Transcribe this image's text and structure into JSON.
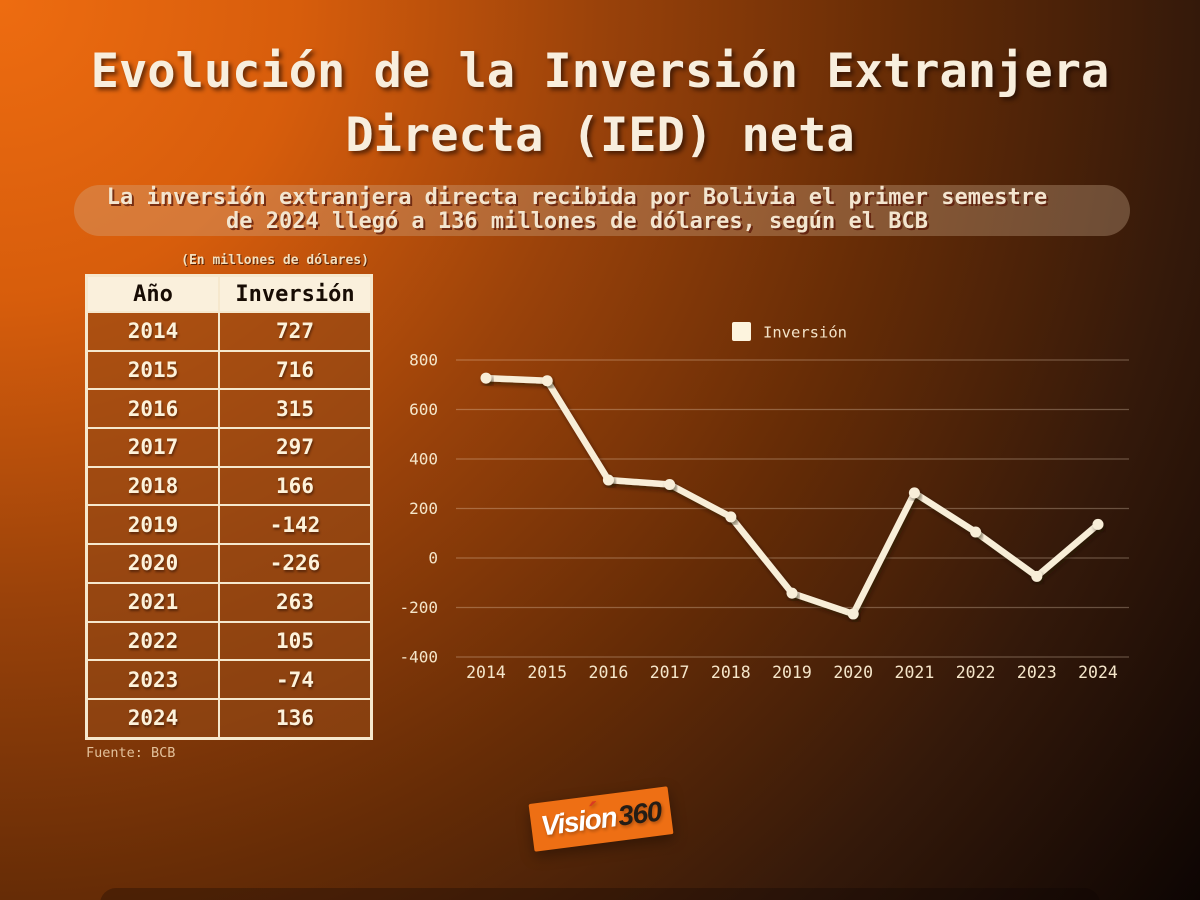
{
  "title": {
    "line1": "Evolución de la Inversión Extranjera",
    "line2": "Directa (IED) neta"
  },
  "subtitle": {
    "line1": "La inversión extranjera directa recibida por Bolivia el primer semestre",
    "line2": "de 2024 llegó a 136 millones de dólares, según el BCB"
  },
  "table": {
    "note": "(En millones de dólares)",
    "headers": [
      "Año",
      "Inversión"
    ],
    "rows": [
      [
        "2014",
        "727"
      ],
      [
        "2015",
        "716"
      ],
      [
        "2016",
        "315"
      ],
      [
        "2017",
        "297"
      ],
      [
        "2018",
        "166"
      ],
      [
        "2019",
        "-142"
      ],
      [
        "2020",
        "-226"
      ],
      [
        "2021",
        "263"
      ],
      [
        "2022",
        "105"
      ],
      [
        "2023",
        "-74"
      ],
      [
        "2024",
        "136"
      ]
    ],
    "source": "Fuente: BCB"
  },
  "chart_data": {
    "type": "line",
    "categories": [
      "2014",
      "2015",
      "2016",
      "2017",
      "2018",
      "2019",
      "2020",
      "2021",
      "2022",
      "2023",
      "2024"
    ],
    "series": [
      {
        "name": "Inversión",
        "values": [
          727,
          716,
          315,
          297,
          166,
          -142,
          -226,
          263,
          105,
          -74,
          136
        ]
      }
    ],
    "title": "",
    "xlabel": "",
    "ylabel": "",
    "ylim": [
      -400,
      800
    ],
    "yticks": [
      800,
      600,
      400,
      200,
      0,
      -200,
      -400
    ],
    "grid": "horizontal",
    "legend_position": "top-center",
    "line_color": "#f8eed8",
    "grid_color": "rgba(255,233,210,0.28)"
  },
  "logo": {
    "brand": "Visión",
    "suffix": "360",
    "accent_color": "#d93a22"
  },
  "colors": {
    "background_top_left": "#ee6c10",
    "background_bottom_right": "#0d0503",
    "text_cream": "#f8eedd",
    "table_header_bg": "#faf0dc",
    "table_cell_bg": "#94491699",
    "logo_bg": "#ee6f14"
  }
}
